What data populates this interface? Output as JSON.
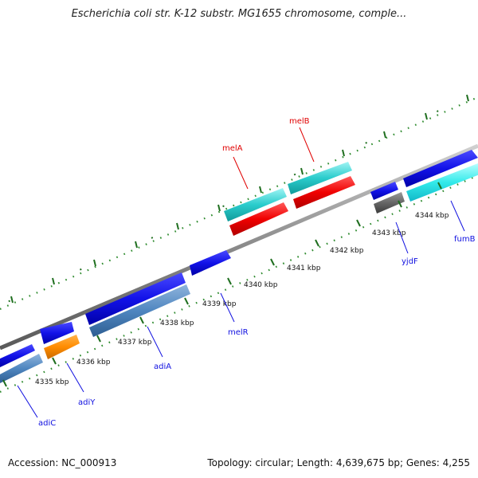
{
  "title": "Escherichia coli str. K-12 substr. MG1655 chromosome, comple...",
  "accession": "Accession: NC_000913",
  "topology": "Topology: circular; Length: 4,639,675 bp; Genes: 4,255",
  "ticks": [
    "4335 kbp",
    "4336 kbp",
    "4337 kbp",
    "4338 kbp",
    "4339 kbp",
    "4340 kbp",
    "4341 kbp",
    "4342 kbp",
    "4343 kbp",
    "4344 kbp"
  ],
  "genes": [
    {
      "name": "adiC",
      "color": "#1010e0"
    },
    {
      "name": "adiY",
      "color": "#1010e0"
    },
    {
      "name": "adiA",
      "color": "#1010e0"
    },
    {
      "name": "melR",
      "color": "#1010e0"
    },
    {
      "name": "melA",
      "color": "#e00000"
    },
    {
      "name": "melB",
      "color": "#e00000"
    },
    {
      "name": "yjdF",
      "color": "#1010e0"
    },
    {
      "name": "fumB",
      "color": "#1010e0"
    }
  ]
}
